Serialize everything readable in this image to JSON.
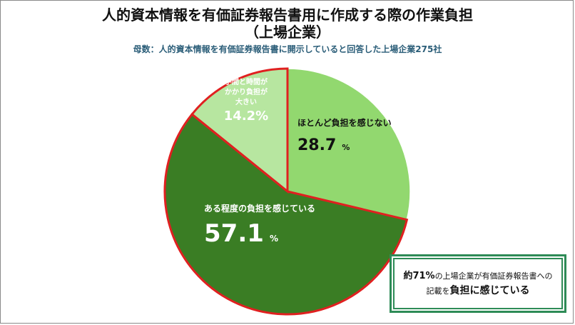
{
  "chart_data": {
    "type": "pie",
    "title_line1": "人的資本情報を有価証券報告書用に作成する際の作業負担",
    "title_line2": "（上場企業）",
    "subtitle": "母数：人的資本情報を有価証券報告書に開示していると回答した上場企業275社",
    "slices": [
      {
        "label": "ほとんど負担を感じない",
        "value": 28.7,
        "value_text": "28.7",
        "unit": "%",
        "color": "#92d86f"
      },
      {
        "label": "ある程度の負担を感じている",
        "value": 57.1,
        "value_text": "57.1",
        "unit": "%",
        "color": "#3a7d24"
      },
      {
        "label": "手間と時間がかかり負担が大きい",
        "label_lines": [
          "手間と時間が",
          "かかり負担が",
          "大きい"
        ],
        "value": 14.2,
        "value_text": "14.2%",
        "color": "#b7e6a0"
      }
    ],
    "highlight_border_color": "#e02020"
  },
  "note": {
    "line1_a": "約71%",
    "line1_b": "の上場企業が有価証券報告書への",
    "line2_a": "記載を",
    "line2_b": "負担",
    "line2_c": "に感じている"
  }
}
